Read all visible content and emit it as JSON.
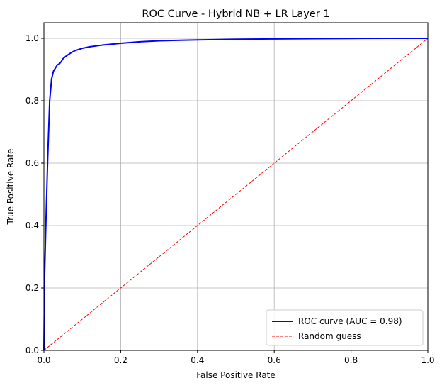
{
  "chart_data": {
    "type": "line",
    "title": "ROC Curve - Hybrid NB + LR Layer 1",
    "xlabel": "False Positive Rate",
    "ylabel": "True Positive Rate",
    "xlim": [
      0.0,
      1.0
    ],
    "ylim": [
      0.0,
      1.05
    ],
    "xticks": [
      "0.0",
      "0.2",
      "0.4",
      "0.6",
      "0.8",
      "1.0"
    ],
    "yticks": [
      "0.0",
      "0.2",
      "0.4",
      "0.6",
      "0.8",
      "1.0"
    ],
    "grid": true,
    "legend_position": "lower-right",
    "series": [
      {
        "name": "ROC curve (AUC = 0.98)",
        "color": "#0000ff",
        "style": "solid",
        "x": [
          0.0,
          0.002,
          0.005,
          0.01,
          0.015,
          0.02,
          0.025,
          0.03,
          0.035,
          0.04,
          0.045,
          0.05,
          0.06,
          0.07,
          0.08,
          0.1,
          0.12,
          0.15,
          0.2,
          0.25,
          0.3,
          0.4,
          0.5,
          0.6,
          0.7,
          0.8,
          0.9,
          1.0
        ],
        "y": [
          0.0,
          0.25,
          0.4,
          0.62,
          0.8,
          0.87,
          0.895,
          0.905,
          0.915,
          0.918,
          0.925,
          0.935,
          0.945,
          0.953,
          0.96,
          0.968,
          0.973,
          0.978,
          0.984,
          0.989,
          0.992,
          0.995,
          0.997,
          0.998,
          0.999,
          0.9995,
          1.0,
          1.0
        ]
      },
      {
        "name": "Random guess",
        "color": "#ff0000",
        "style": "dashed",
        "x": [
          0.0,
          1.0
        ],
        "y": [
          0.0,
          1.0
        ]
      }
    ]
  }
}
